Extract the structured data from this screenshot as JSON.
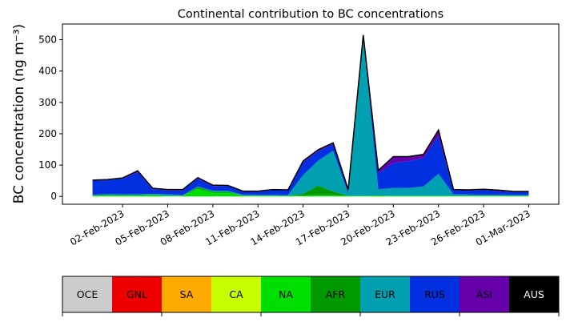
{
  "chart_data": {
    "type": "area",
    "stacked": true,
    "title": "Continental contribution to BC concentrations",
    "ylabel": "BC concentration (ng m⁻³)",
    "xlabel": "",
    "x_start": "2023-01-31",
    "x_step_days": 1,
    "xlim": [
      "2023-01-29",
      "2023-03-03"
    ],
    "ylim": [
      -25,
      550
    ],
    "yticks": [
      0,
      100,
      200,
      300,
      400,
      500
    ],
    "xticks": [
      "02-Feb-2023",
      "05-Feb-2023",
      "08-Feb-2023",
      "11-Feb-2023",
      "14-Feb-2023",
      "17-Feb-2023",
      "20-Feb-2023",
      "23-Feb-2023",
      "26-Feb-2023",
      "01-Mar-2023"
    ],
    "x": [
      "2023-01-31",
      "2023-02-01",
      "2023-02-02",
      "2023-02-03",
      "2023-02-04",
      "2023-02-05",
      "2023-02-06",
      "2023-02-07",
      "2023-02-08",
      "2023-02-09",
      "2023-02-10",
      "2023-02-11",
      "2023-02-12",
      "2023-02-13",
      "2023-02-14",
      "2023-02-15",
      "2023-02-16",
      "2023-02-17",
      "2023-02-18",
      "2023-02-19",
      "2023-02-20",
      "2023-02-21",
      "2023-02-22",
      "2023-02-23",
      "2023-02-24",
      "2023-02-25",
      "2023-02-26",
      "2023-02-27",
      "2023-02-28",
      "2023-03-01"
    ],
    "series": [
      {
        "name": "OCE",
        "color": "#cccccc",
        "values": [
          0,
          0,
          0,
          0,
          0,
          0,
          0,
          0,
          0,
          0,
          0,
          0,
          0,
          0,
          0,
          0,
          0,
          0,
          0,
          0,
          0,
          0,
          0,
          0,
          0,
          0,
          0,
          0,
          0,
          0
        ]
      },
      {
        "name": "GNL",
        "color": "#ee0000",
        "values": [
          0,
          0,
          0,
          0,
          0,
          0,
          0,
          0,
          0,
          0,
          0,
          0,
          0,
          0,
          0,
          0,
          0,
          0,
          0,
          0,
          0,
          0,
          0,
          0,
          0,
          0,
          0,
          0,
          0,
          0
        ]
      },
      {
        "name": "SA",
        "color": "#ffaa00",
        "values": [
          0,
          0,
          0,
          0,
          0,
          0,
          0,
          0,
          0,
          0,
          0,
          0,
          0,
          0,
          0,
          0,
          0,
          0,
          0,
          0,
          0,
          0,
          0,
          0,
          0,
          0,
          0,
          0,
          0,
          0
        ]
      },
      {
        "name": "CA",
        "color": "#c8ff00",
        "values": [
          0,
          0,
          0,
          0,
          0,
          0,
          0,
          0,
          0,
          0,
          0,
          0,
          0,
          0,
          0,
          0,
          0,
          0,
          0,
          0,
          0,
          0,
          0,
          0,
          0,
          0,
          0,
          0,
          0,
          0
        ]
      },
      {
        "name": "NA",
        "color": "#00e000",
        "values": [
          3,
          5,
          4,
          4,
          5,
          2,
          2,
          25,
          12,
          12,
          3,
          2,
          2,
          2,
          3,
          4,
          4,
          2,
          2,
          3,
          2,
          2,
          2,
          2,
          2,
          2,
          2,
          2,
          2,
          2
        ]
      },
      {
        "name": "AFR",
        "color": "#009900",
        "values": [
          0,
          0,
          0,
          0,
          0,
          0,
          0,
          5,
          3,
          3,
          0,
          0,
          0,
          0,
          5,
          30,
          12,
          0,
          0,
          0,
          0,
          0,
          0,
          0,
          0,
          0,
          0,
          0,
          0,
          0
        ]
      },
      {
        "name": "EUR",
        "color": "#00a0b0",
        "values": [
          2,
          2,
          2,
          3,
          3,
          5,
          2,
          2,
          3,
          3,
          2,
          3,
          3,
          2,
          60,
          80,
          130,
          8,
          505,
          20,
          25,
          25,
          30,
          70,
          5,
          4,
          3,
          3,
          2,
          2
        ]
      },
      {
        "name": "RUS",
        "color": "#0030e0",
        "values": [
          45,
          45,
          50,
          70,
          15,
          12,
          15,
          25,
          15,
          15,
          10,
          10,
          15,
          15,
          40,
          30,
          20,
          10,
          5,
          50,
          80,
          85,
          90,
          120,
          12,
          12,
          15,
          12,
          10,
          10
        ]
      },
      {
        "name": "ASI",
        "color": "#6600aa",
        "values": [
          2,
          2,
          3,
          5,
          3,
          3,
          3,
          3,
          3,
          2,
          2,
          2,
          2,
          2,
          5,
          5,
          5,
          2,
          3,
          10,
          20,
          15,
          12,
          20,
          3,
          3,
          3,
          3,
          2,
          2
        ]
      },
      {
        "name": "AUS",
        "color": "#000000",
        "values": [
          0,
          0,
          0,
          0,
          0,
          0,
          0,
          0,
          0,
          0,
          0,
          0,
          0,
          0,
          0,
          0,
          0,
          0,
          0,
          0,
          0,
          0,
          0,
          0,
          0,
          0,
          0,
          0,
          0,
          0
        ]
      }
    ],
    "total_line_color": "#000000",
    "grid": false,
    "legend": "bottom"
  }
}
